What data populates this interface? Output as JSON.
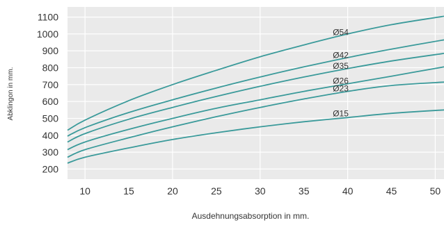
{
  "chart_data": {
    "type": "line",
    "title": "",
    "xlabel": "Ausdehnungsabsorption in mm.",
    "ylabel": "Abklingon in mm.",
    "xlim": [
      8,
      51
    ],
    "ylim": [
      140,
      1160
    ],
    "x_ticks": [
      "10",
      "15",
      "20",
      "25",
      "30",
      "35",
      "40",
      "45",
      "50"
    ],
    "y_ticks": [
      "200",
      "300",
      "400",
      "500",
      "600",
      "700",
      "800",
      "900",
      "1000",
      "1100"
    ],
    "grid": true,
    "colors": {
      "line": "#3a9a9a",
      "plot_bg": "#eaeaea",
      "grid": "#ffffff",
      "text": "#333333"
    },
    "series": [
      {
        "name": "Ø54",
        "x": [
          8,
          10,
          15,
          20,
          25,
          30,
          35,
          40,
          45,
          51
        ],
        "y": [
          430,
          490,
          605,
          700,
          785,
          865,
          935,
          1000,
          1055,
          1105
        ]
      },
      {
        "name": "Ø42",
        "x": [
          8,
          10,
          15,
          20,
          25,
          30,
          35,
          40,
          45,
          51
        ],
        "y": [
          395,
          445,
          535,
          610,
          680,
          745,
          805,
          860,
          910,
          965
        ]
      },
      {
        "name": "Ø35",
        "x": [
          8,
          10,
          15,
          20,
          25,
          30,
          35,
          40,
          45,
          51
        ],
        "y": [
          360,
          410,
          495,
          565,
          630,
          690,
          745,
          795,
          840,
          885
        ]
      },
      {
        "name": "Ø26",
        "x": [
          8,
          10,
          15,
          20,
          25,
          30,
          35,
          40,
          45,
          51
        ],
        "y": [
          315,
          360,
          435,
          500,
          560,
          610,
          660,
          705,
          750,
          805
        ]
      },
      {
        "name": "Ø23",
        "x": [
          8,
          10,
          15,
          20,
          25,
          30,
          35,
          40,
          45,
          51
        ],
        "y": [
          270,
          315,
          385,
          450,
          510,
          565,
          615,
          660,
          695,
          715
        ]
      },
      {
        "name": "Ø15",
        "x": [
          8,
          10,
          15,
          20,
          25,
          30,
          35,
          40,
          45,
          51
        ],
        "y": [
          235,
          270,
          325,
          375,
          415,
          450,
          480,
          505,
          530,
          550
        ]
      }
    ]
  }
}
